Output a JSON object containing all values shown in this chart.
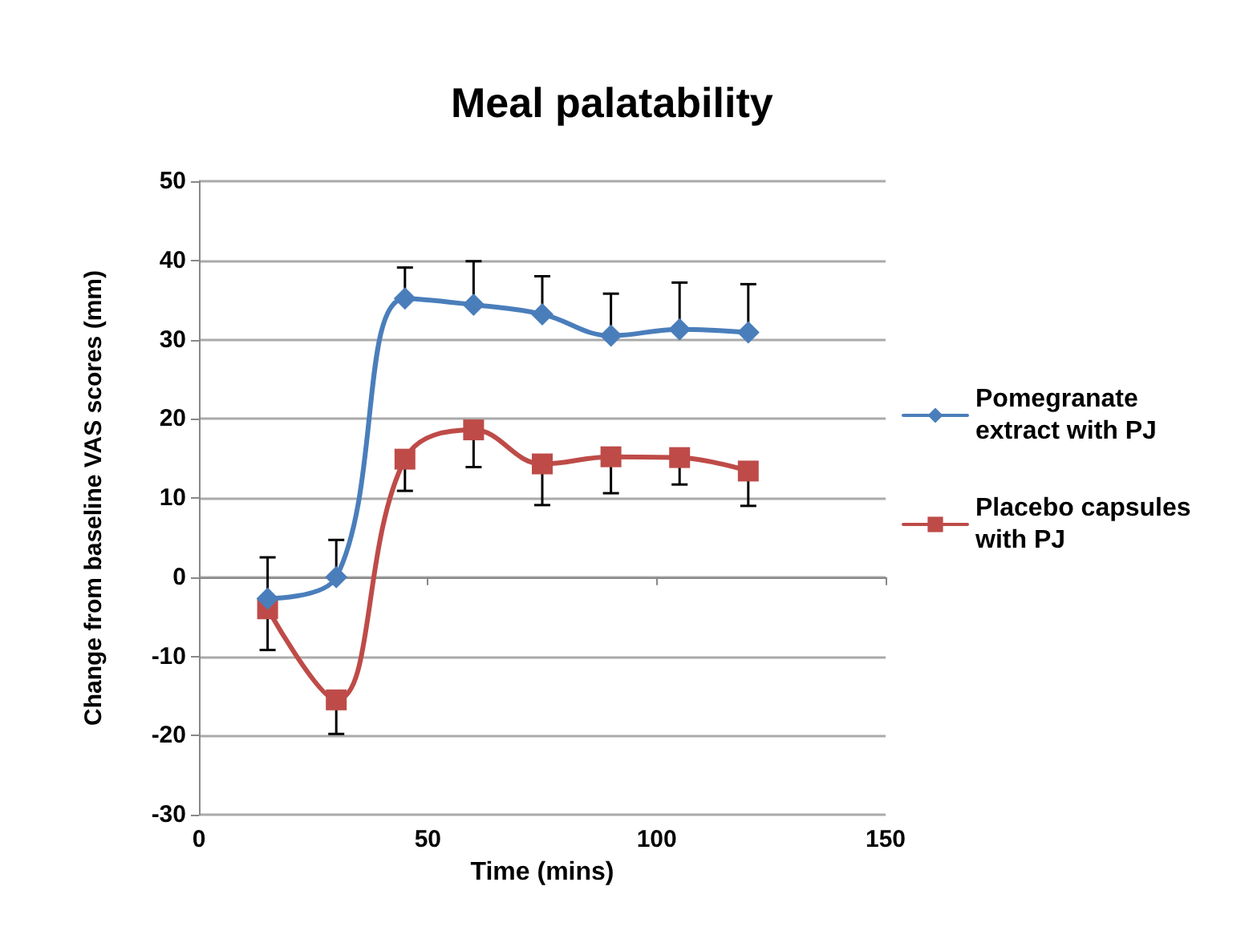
{
  "chart_data": {
    "type": "line",
    "title": "Meal palatability",
    "xlabel": "Time (mins)",
    "ylabel": "Change from baseline VAS scores (mm)",
    "x": [
      15,
      30,
      45,
      60,
      75,
      90,
      105,
      120
    ],
    "series": [
      {
        "name": "Pomegranate extract with PJ",
        "color": "#4a7ebb",
        "marker": "diamond",
        "values": [
          -2.7,
          0,
          35.2,
          34.4,
          33.2,
          30.5,
          31.3,
          30.9
        ],
        "errors": [
          [
            -2.7,
            2.5
          ],
          [
            0,
            4.7
          ],
          [
            35.2,
            39.1
          ],
          [
            34.4,
            39.9
          ],
          [
            33.2,
            38.0
          ],
          [
            30.5,
            35.8
          ],
          [
            31.3,
            37.2
          ],
          [
            30.9,
            37.0
          ]
        ]
      },
      {
        "name": "Placebo capsules with PJ",
        "color": "#be4b48",
        "marker": "square",
        "values": [
          -4.0,
          -15.5,
          14.9,
          18.6,
          14.3,
          15.2,
          15.1,
          13.4
        ],
        "errors": [
          [
            -9.2,
            -4.0
          ],
          [
            -19.8,
            -15.5
          ],
          [
            10.9,
            14.9
          ],
          [
            13.9,
            18.6
          ],
          [
            9.1,
            14.3
          ],
          [
            10.6,
            15.2
          ],
          [
            11.7,
            15.1
          ],
          [
            9.0,
            13.4
          ]
        ]
      }
    ],
    "xlim": [
      0,
      150
    ],
    "xticks": [
      0,
      50,
      100,
      150
    ],
    "ylim": [
      -30,
      50
    ],
    "yticks": [
      -30,
      -20,
      -10,
      0,
      10,
      20,
      30,
      40,
      50
    ],
    "grid": "y",
    "legend": "right",
    "line_style": "solid"
  }
}
